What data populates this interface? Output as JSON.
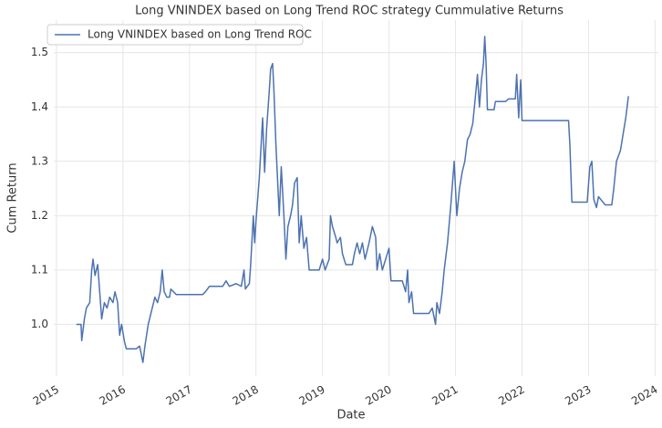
{
  "chart_data": {
    "type": "line",
    "title": "Long VNINDEX based on Long Trend ROC strategy Cummulative Returns",
    "x_label": "Date",
    "y_label": "Cum Return",
    "legend": "upper left",
    "grid": true,
    "xlim": [
      2014.96,
      2024.05
    ],
    "xticks": [
      2015,
      2016,
      2017,
      2018,
      2019,
      2020,
      2021,
      2022,
      2023,
      2024
    ],
    "ylim": [
      0.905,
      1.56
    ],
    "yticks": [
      1.0,
      1.1,
      1.2,
      1.3,
      1.4,
      1.5
    ],
    "series": [
      {
        "name": "Long VNINDEX based on Long Trend ROC",
        "color": "#4c72b0",
        "x": [
          2015.3,
          2015.37,
          2015.38,
          2015.42,
          2015.45,
          2015.5,
          2015.53,
          2015.55,
          2015.58,
          2015.62,
          2015.65,
          2015.68,
          2015.72,
          2015.76,
          2015.8,
          2015.85,
          2015.88,
          2015.92,
          2015.95,
          2015.98,
          2016.02,
          2016.05,
          2016.2,
          2016.25,
          2016.3,
          2016.33,
          2016.38,
          2016.42,
          2016.48,
          2016.52,
          2016.56,
          2016.59,
          2016.62,
          2016.66,
          2016.7,
          2016.72,
          2016.8,
          2017.2,
          2017.24,
          2017.3,
          2017.5,
          2017.55,
          2017.6,
          2017.7,
          2017.78,
          2017.82,
          2017.84,
          2017.9,
          2017.92,
          2017.96,
          2017.98,
          2018.0,
          2018.05,
          2018.1,
          2018.13,
          2018.16,
          2018.2,
          2018.22,
          2018.25,
          2018.27,
          2018.3,
          2018.35,
          2018.38,
          2018.42,
          2018.45,
          2018.48,
          2018.52,
          2018.55,
          2018.58,
          2018.62,
          2018.65,
          2018.68,
          2018.72,
          2018.76,
          2018.8,
          2018.85,
          2018.95,
          2019.0,
          2019.04,
          2019.1,
          2019.12,
          2019.15,
          2019.2,
          2019.22,
          2019.27,
          2019.3,
          2019.35,
          2019.45,
          2019.48,
          2019.52,
          2019.56,
          2019.6,
          2019.64,
          2019.7,
          2019.75,
          2019.8,
          2019.82,
          2019.86,
          2019.9,
          2019.95,
          2020.0,
          2020.03,
          2020.2,
          2020.25,
          2020.28,
          2020.3,
          2020.34,
          2020.37,
          2020.6,
          2020.65,
          2020.7,
          2020.72,
          2020.76,
          2020.8,
          2020.83,
          2020.88,
          2020.93,
          2020.98,
          2021.02,
          2021.06,
          2021.1,
          2021.14,
          2021.18,
          2021.22,
          2021.26,
          2021.3,
          2021.33,
          2021.36,
          2021.39,
          2021.42,
          2021.44,
          2021.46,
          2021.48,
          2021.58,
          2021.6,
          2021.75,
          2021.8,
          2021.9,
          2021.92,
          2021.95,
          2021.98,
          2022.0,
          2022.7,
          2022.72,
          2022.75,
          2022.98,
          2023.02,
          2023.05,
          2023.08,
          2023.12,
          2023.15,
          2023.25,
          2023.35,
          2023.38,
          2023.42,
          2023.48,
          2023.52,
          2023.56,
          2023.6
        ],
        "values": [
          1.0,
          1.0,
          0.97,
          1.01,
          1.03,
          1.04,
          1.1,
          1.12,
          1.09,
          1.11,
          1.06,
          1.01,
          1.04,
          1.03,
          1.05,
          1.04,
          1.06,
          1.04,
          0.98,
          1.0,
          0.97,
          0.955,
          0.955,
          0.96,
          0.93,
          0.96,
          1.0,
          1.02,
          1.05,
          1.04,
          1.06,
          1.1,
          1.06,
          1.05,
          1.05,
          1.065,
          1.055,
          1.055,
          1.06,
          1.07,
          1.07,
          1.08,
          1.07,
          1.075,
          1.07,
          1.1,
          1.065,
          1.075,
          1.11,
          1.2,
          1.15,
          1.19,
          1.27,
          1.38,
          1.28,
          1.36,
          1.43,
          1.47,
          1.48,
          1.43,
          1.33,
          1.2,
          1.29,
          1.2,
          1.12,
          1.18,
          1.2,
          1.22,
          1.26,
          1.27,
          1.15,
          1.2,
          1.14,
          1.16,
          1.1,
          1.1,
          1.1,
          1.12,
          1.1,
          1.12,
          1.2,
          1.18,
          1.16,
          1.15,
          1.16,
          1.13,
          1.11,
          1.11,
          1.13,
          1.15,
          1.13,
          1.15,
          1.12,
          1.15,
          1.18,
          1.16,
          1.1,
          1.13,
          1.1,
          1.12,
          1.14,
          1.08,
          1.08,
          1.06,
          1.1,
          1.04,
          1.06,
          1.02,
          1.02,
          1.03,
          1.0,
          1.04,
          1.02,
          1.06,
          1.1,
          1.15,
          1.22,
          1.3,
          1.2,
          1.25,
          1.28,
          1.3,
          1.34,
          1.35,
          1.37,
          1.42,
          1.46,
          1.4,
          1.45,
          1.48,
          1.53,
          1.48,
          1.395,
          1.395,
          1.41,
          1.41,
          1.415,
          1.415,
          1.46,
          1.38,
          1.45,
          1.375,
          1.375,
          1.33,
          1.225,
          1.225,
          1.29,
          1.3,
          1.23,
          1.215,
          1.235,
          1.22,
          1.22,
          1.25,
          1.3,
          1.32,
          1.35,
          1.38,
          1.42
        ]
      }
    ]
  }
}
